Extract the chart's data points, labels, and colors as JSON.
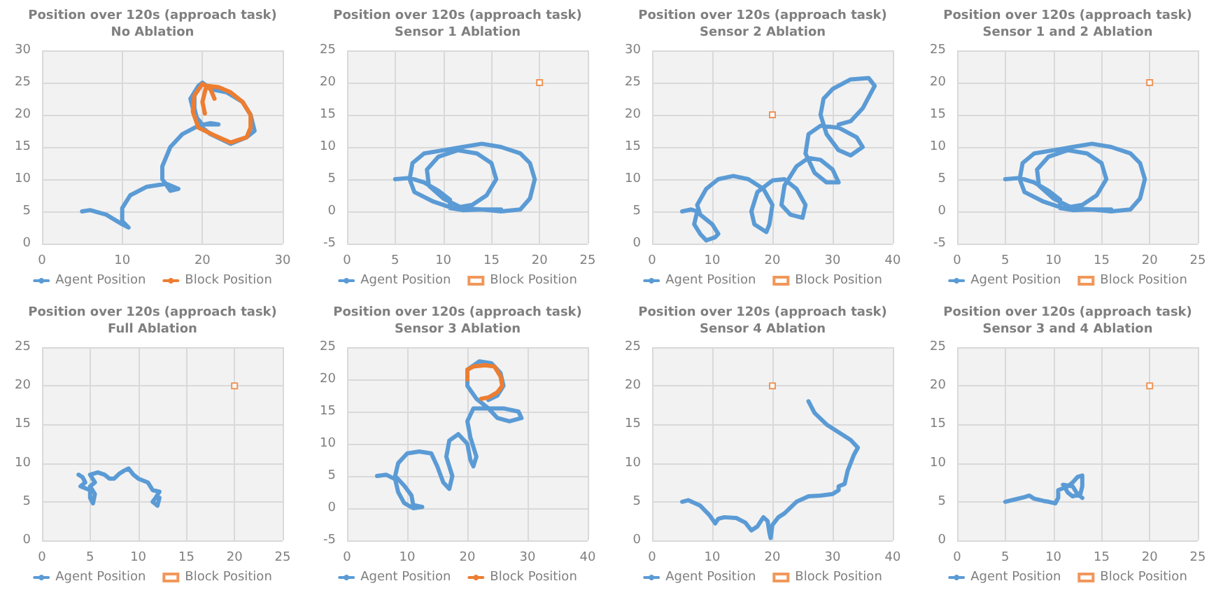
{
  "chart_data": [
    {
      "type": "line",
      "title": "Position over 120s (approach task)",
      "subtitle": "No Ablation",
      "xlim": [
        0,
        30
      ],
      "xticks": [
        0,
        10,
        20,
        30
      ],
      "ylim": [
        0,
        30
      ],
      "yticks": [
        0,
        5,
        10,
        15,
        20,
        25,
        30
      ],
      "grid": true,
      "legend": "bottom",
      "series": [
        {
          "name": "Agent Position",
          "type": "line",
          "marker": "none",
          "color": "#5b9bd5",
          "x": [
            5,
            6,
            8,
            10,
            10.8,
            10,
            10,
            11,
            13,
            15.5,
            17,
            16,
            15,
            15,
            16,
            17.5,
            19.5,
            21,
            22,
            20,
            19,
            18.5,
            19.5,
            20,
            21,
            23,
            25,
            26,
            26.5,
            25.5,
            23.5,
            21,
            19.5,
            19,
            19
          ],
          "values": [
            5,
            5.2,
            4.5,
            3,
            2.5,
            3.5,
            5.5,
            7.5,
            8.8,
            9.3,
            8.5,
            8.2,
            10,
            12,
            15,
            17,
            18.3,
            18.7,
            18.5,
            18.5,
            20,
            22.5,
            24.5,
            25,
            24,
            23.5,
            22,
            20,
            17.5,
            16.5,
            15.5,
            17,
            18.5,
            21,
            23.5
          ]
        },
        {
          "name": "Block Position",
          "type": "line",
          "marker": "none",
          "color": "#ed7d31",
          "x": [
            21.5,
            21,
            20,
            19,
            18.8,
            19.5,
            21.5,
            23.5,
            25.5,
            26,
            26,
            25,
            23.5,
            22,
            20.5,
            20,
            20.3
          ],
          "values": [
            22.5,
            24,
            24.8,
            23,
            20.5,
            18,
            16.8,
            15.7,
            16.5,
            18,
            20,
            22,
            23.5,
            24.3,
            24.5,
            22,
            20.2
          ]
        }
      ]
    },
    {
      "type": "line",
      "title": "Position over 120s (approach task)",
      "subtitle": "Sensor 1 Ablation",
      "xlim": [
        0,
        25
      ],
      "xticks": [
        0,
        5,
        10,
        15,
        20,
        25
      ],
      "ylim": [
        -5,
        25
      ],
      "yticks": [
        -5,
        0,
        5,
        10,
        15,
        20,
        25
      ],
      "grid": true,
      "legend": "bottom",
      "series": [
        {
          "name": "Agent Position",
          "type": "line",
          "marker": "none",
          "color": "#5b9bd5",
          "x": [
            5,
            6.5,
            8,
            9.5,
            10.7,
            10.7,
            12,
            14,
            16,
            18,
            19,
            19.5,
            19,
            18,
            16,
            14,
            12,
            10,
            8,
            6.8,
            6.5,
            7,
            9,
            11,
            13,
            14.5,
            15.5,
            15,
            13.5,
            11.5,
            9.5,
            8.3,
            8.5,
            10,
            12,
            14,
            16
          ],
          "values": [
            5,
            5.2,
            4.5,
            3.2,
            1.8,
            0.5,
            0.2,
            0.3,
            0,
            0.3,
            2,
            5,
            7.5,
            9,
            10,
            10.5,
            10,
            9.5,
            9,
            7.5,
            5,
            3,
            1.5,
            0.5,
            1,
            2.5,
            5,
            7.5,
            9,
            9.5,
            8.5,
            6.5,
            4,
            2,
            0.5,
            0.3,
            0.3
          ]
        },
        {
          "name": "Block Position",
          "type": "scatter",
          "marker": "square",
          "color": "#ed7d31",
          "x": [
            20
          ],
          "values": [
            20
          ]
        }
      ]
    },
    {
      "type": "line",
      "title": "Position over 120s (approach task)",
      "subtitle": "Sensor 2 Ablation",
      "xlim": [
        0,
        40
      ],
      "xticks": [
        0,
        10,
        20,
        30,
        40
      ],
      "ylim": [
        0,
        30
      ],
      "yticks": [
        0,
        5,
        10,
        15,
        20,
        25,
        30
      ],
      "grid": true,
      "legend": "bottom",
      "series": [
        {
          "name": "Agent Position",
          "type": "line",
          "marker": "none",
          "color": "#5b9bd5",
          "x": [
            5,
            6.5,
            7.5,
            7,
            8,
            9,
            10.5,
            11,
            10,
            8,
            7.5,
            9,
            11,
            13.5,
            16,
            18.5,
            20,
            19.5,
            19,
            17,
            16.5,
            17.5,
            20,
            22,
            24,
            25.5,
            25,
            23,
            21.5,
            22,
            24,
            26,
            28,
            30,
            31,
            29,
            27,
            25.5,
            26,
            28,
            31,
            34,
            35,
            33,
            31,
            29,
            28,
            28.5,
            30,
            33,
            36,
            37,
            35,
            33,
            31
          ],
          "values": [
            5,
            5.3,
            5,
            3,
            1.5,
            0.5,
            1,
            1.5,
            3,
            4.5,
            6,
            8.5,
            10,
            10.5,
            10,
            8.5,
            6,
            3,
            1.8,
            3,
            5,
            8,
            9.8,
            10,
            8.5,
            6,
            4,
            4.5,
            6,
            9,
            12,
            13.3,
            13,
            11.5,
            9.5,
            9.5,
            11,
            14,
            17,
            18.3,
            18,
            16.5,
            15,
            13.7,
            14.5,
            17,
            20,
            22.5,
            24,
            25.5,
            25.7,
            24.5,
            21,
            19,
            18.5
          ]
        },
        {
          "name": "Block Position",
          "type": "scatter",
          "marker": "square",
          "color": "#ed7d31",
          "x": [
            20
          ],
          "values": [
            20
          ]
        }
      ]
    },
    {
      "type": "line",
      "title": "Position over 120s (approach task)",
      "subtitle": "Sensor 1 and 2 Ablation",
      "xlim": [
        0,
        25
      ],
      "xticks": [
        0,
        5,
        10,
        15,
        20,
        25
      ],
      "ylim": [
        -5,
        25
      ],
      "yticks": [
        -5,
        0,
        5,
        10,
        15,
        20,
        25
      ],
      "grid": true,
      "legend": "bottom",
      "series": [
        {
          "name": "Agent Position",
          "type": "line",
          "marker": "none",
          "color": "#5b9bd5",
          "x": [
            5,
            6.5,
            8,
            9.5,
            10.7,
            10.7,
            12,
            14,
            16,
            18,
            19,
            19.5,
            19,
            18,
            16,
            14,
            12,
            10,
            8,
            6.8,
            6.5,
            7,
            9,
            11,
            13,
            14.5,
            15.5,
            15,
            13.5,
            11.5,
            9.5,
            8.3,
            8.5,
            10,
            12,
            14,
            16
          ],
          "values": [
            5,
            5.2,
            4.5,
            3.2,
            1.8,
            0.5,
            0.2,
            0.3,
            0,
            0.3,
            2,
            5,
            7.5,
            9,
            10,
            10.5,
            10,
            9.5,
            9,
            7.5,
            5,
            3,
            1.5,
            0.5,
            1,
            2.5,
            5,
            7.5,
            9,
            9.5,
            8.5,
            6.5,
            4,
            2,
            0.5,
            0.3,
            0.3
          ]
        },
        {
          "name": "Block Position",
          "type": "scatter",
          "marker": "square",
          "color": "#ed7d31",
          "x": [
            20
          ],
          "values": [
            20
          ]
        }
      ]
    },
    {
      "type": "line",
      "title": "Position over 120s (approach task)",
      "subtitle": "Full Ablation",
      "xlim": [
        0,
        25
      ],
      "xticks": [
        0,
        5,
        10,
        15,
        20,
        25
      ],
      "ylim": [
        0,
        25
      ],
      "yticks": [
        0,
        5,
        10,
        15,
        20,
        25
      ],
      "grid": true,
      "legend": "bottom",
      "series": [
        {
          "name": "Agent Position",
          "type": "line",
          "marker": "none",
          "color": "#5b9bd5",
          "x": [
            3.8,
            4.2,
            4.5,
            4,
            5,
            5,
            5.3,
            5.5,
            5,
            5.5,
            5,
            5.8,
            6.5,
            7,
            7.5,
            8,
            8.5,
            9,
            9.5,
            10,
            11,
            11.5,
            12.2,
            11.8,
            11.5,
            12,
            12.2
          ],
          "values": [
            8.5,
            8.2,
            7.5,
            7,
            6.5,
            5.5,
            4.8,
            6,
            7,
            7.5,
            8.5,
            8.8,
            8.5,
            8,
            8,
            8.6,
            9,
            9.3,
            8.5,
            8,
            7.5,
            6.5,
            6.3,
            5.5,
            5,
            4.5,
            5.5
          ]
        },
        {
          "name": "Block Position",
          "type": "scatter",
          "marker": "square",
          "color": "#ed7d31",
          "x": [
            20
          ],
          "values": [
            20
          ]
        }
      ]
    },
    {
      "type": "line",
      "title": "Position over 120s (approach task)",
      "subtitle": "Sensor 3 Ablation",
      "xlim": [
        0,
        40
      ],
      "xticks": [
        0,
        10,
        20,
        30,
        40
      ],
      "ylim": [
        -5,
        25
      ],
      "yticks": [
        -5,
        0,
        5,
        10,
        15,
        20,
        25
      ],
      "grid": true,
      "legend": "bottom",
      "series": [
        {
          "name": "Agent Position",
          "type": "line",
          "marker": "none",
          "color": "#5b9bd5",
          "x": [
            5,
            6.5,
            8,
            8.5,
            9.5,
            11,
            12.5,
            11,
            10.7,
            9.5,
            8,
            8.5,
            10,
            12,
            14,
            15,
            16,
            17,
            17.5,
            16.5,
            17,
            18.5,
            20,
            20.5,
            21,
            21.5,
            20.5,
            20,
            21,
            23,
            26,
            28.5,
            29,
            27,
            25,
            23.5,
            21.5,
            20,
            20,
            22,
            24,
            25.5,
            26,
            25,
            23.5
          ],
          "values": [
            5,
            5.2,
            4.5,
            2.5,
            0.8,
            0,
            0.2,
            0.5,
            2,
            3.5,
            5,
            7,
            8.5,
            8.8,
            8.5,
            6.5,
            4,
            3,
            5,
            8,
            10.5,
            11.5,
            10,
            7.5,
            6.5,
            8,
            11,
            13.5,
            15.5,
            15.5,
            15.5,
            15,
            14,
            13.5,
            14,
            15.5,
            17,
            19,
            21.5,
            22.8,
            22.5,
            21,
            19,
            17.5,
            16.8
          ]
        },
        {
          "name": "Block Position",
          "type": "line",
          "marker": "none",
          "color": "#ed7d31",
          "x": [
            20,
            20,
            21,
            23,
            24.5,
            25.5,
            25.8,
            25,
            23.5,
            22.3
          ],
          "values": [
            20,
            21.5,
            22,
            22.2,
            22,
            20.5,
            19,
            18,
            17.2,
            17
          ]
        }
      ]
    },
    {
      "type": "line",
      "title": "Position over 120s (approach task)",
      "subtitle": "Sensor 4 Ablation",
      "xlim": [
        0,
        40
      ],
      "xticks": [
        0,
        10,
        20,
        30,
        40
      ],
      "ylim": [
        0,
        25
      ],
      "yticks": [
        0,
        5,
        10,
        15,
        20,
        25
      ],
      "grid": true,
      "legend": "bottom",
      "series": [
        {
          "name": "Agent Position",
          "type": "line",
          "marker": "none",
          "color": "#5b9bd5",
          "x": [
            5,
            6,
            8,
            9.5,
            10.5,
            11,
            12,
            14,
            15.5,
            16.5,
            17.5,
            18.5,
            19.2,
            19.5,
            19.7,
            20,
            21,
            22,
            24,
            26,
            28,
            30,
            31,
            31,
            32,
            32.5,
            33.5,
            34.2,
            33,
            31,
            29,
            27,
            26
          ],
          "values": [
            5,
            5.2,
            4.5,
            3.3,
            2.2,
            2.8,
            3,
            2.9,
            2.3,
            1.3,
            1.8,
            3,
            2.5,
            1,
            0.3,
            2,
            3,
            3.5,
            5,
            5.7,
            5.8,
            6,
            6.5,
            7,
            7.3,
            9,
            11,
            12,
            13,
            14,
            15,
            16.5,
            18
          ]
        },
        {
          "name": "Block Position",
          "type": "scatter",
          "marker": "square",
          "color": "#ed7d31",
          "x": [
            20
          ],
          "values": [
            20
          ]
        }
      ]
    },
    {
      "type": "line",
      "title": "Position over 120s (approach task)",
      "subtitle": "Sensor 3 and 4 Ablation",
      "xlim": [
        0,
        25
      ],
      "xticks": [
        0,
        5,
        10,
        15,
        20,
        25
      ],
      "ylim": [
        0,
        25
      ],
      "yticks": [
        0,
        5,
        10,
        15,
        20,
        25
      ],
      "grid": true,
      "legend": "bottom",
      "series": [
        {
          "name": "Agent Position",
          "type": "line",
          "marker": "none",
          "color": "#5b9bd5",
          "x": [
            5,
            6,
            7,
            7.5,
            8,
            9,
            9.5,
            10.2,
            10.5,
            10.5,
            11.5,
            12,
            12.5,
            13,
            13,
            12.8,
            12,
            11.5,
            11,
            12,
            12.5,
            13
          ],
          "values": [
            5,
            5.3,
            5.6,
            5.8,
            5.4,
            5.1,
            5,
            4.8,
            5.5,
            6.5,
            7,
            7.5,
            8.2,
            8.4,
            7,
            6,
            5.7,
            6.2,
            7.2,
            7,
            6,
            5.5
          ]
        },
        {
          "name": "Block Position",
          "type": "scatter",
          "marker": "square",
          "color": "#ed7d31",
          "x": [
            20
          ],
          "values": [
            20
          ]
        }
      ]
    }
  ]
}
